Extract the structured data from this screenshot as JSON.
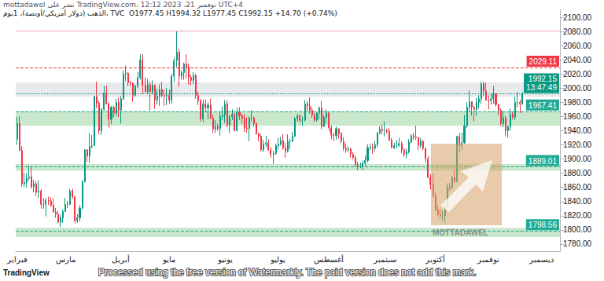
{
  "chart_data": {
    "type": "candlestick",
    "title": "الذهب (دولار أمريكي/أونصة)، 1يوم، TVC  O1977.45 H1994.32 L1977.45 C1992.15 +14.70 (+0.74%)",
    "subtitle": "mottadawel نشر على TradingView.com، نوفمبر 21، 2023 12:12 UTC+4",
    "categories": [
      "فبراير",
      null,
      null,
      null,
      null,
      null,
      null,
      null,
      null,
      null,
      null,
      null,
      null,
      null,
      null,
      null,
      null,
      null,
      null,
      null,
      "مارس",
      null,
      null,
      null,
      null,
      null,
      null,
      null,
      null,
      null,
      null,
      null,
      null,
      null,
      null,
      null,
      null,
      null,
      null,
      null,
      null,
      null,
      null,
      "أبريل",
      null,
      null,
      null,
      null,
      null,
      null,
      null,
      null,
      null,
      null,
      null,
      null,
      null,
      null,
      null,
      null,
      null,
      null,
      null,
      "مايو",
      null,
      null,
      null,
      null,
      null,
      null,
      null,
      null,
      null,
      null,
      null,
      null,
      null,
      null,
      null,
      null,
      null,
      null,
      null,
      null,
      null,
      null,
      "يونيو",
      null,
      null,
      null,
      null,
      null,
      null,
      null,
      null,
      null,
      null,
      null,
      null,
      null,
      null,
      null,
      null,
      null,
      null,
      null,
      null,
      null,
      "يوليو",
      null,
      null,
      null,
      null,
      null,
      null,
      null,
      null,
      null,
      null,
      null,
      null,
      null,
      null,
      null,
      null,
      null,
      null,
      null,
      null,
      "أغسطس",
      null,
      null,
      null,
      null,
      null,
      null,
      null,
      null,
      null,
      null,
      null,
      null,
      null,
      null,
      null,
      null,
      null,
      null,
      null,
      null,
      null,
      null,
      "سبتمبر",
      null,
      null,
      null,
      null,
      null,
      null,
      null,
      null,
      null,
      null,
      null,
      null,
      null,
      null,
      null,
      null,
      null,
      null,
      null,
      null,
      "أكتوبر",
      null,
      null,
      null,
      null,
      null,
      null,
      null,
      null,
      null,
      null,
      null,
      null,
      null,
      null,
      null,
      null,
      null,
      null,
      null,
      null,
      null,
      "نوفمبر",
      null,
      null,
      null,
      null,
      null,
      null,
      null,
      null,
      null,
      null,
      null,
      null,
      null,
      null,
      null,
      null,
      null,
      null,
      null,
      null,
      null,
      "ديسمبر",
      null,
      null,
      null,
      null,
      null,
      null,
      null
    ],
    "open": [
      1928,
      1950,
      1912,
      1865,
      1867,
      1873,
      1875,
      1861,
      1865,
      1853,
      1855,
      1836,
      1836,
      1842,
      1841,
      1835,
      1825,
      1822,
      1811,
      1817,
      1826,
      1836,
      1836,
      1855,
      1847,
      1813,
      1817,
      1831,
      1868,
      1913,
      1904,
      1918,
      1919,
      1988,
      1979,
      1940,
      1970,
      1993,
      1978,
      1956,
      1973,
      1965,
      1980,
      1969,
      1985,
      2020,
      2021,
      2008,
      2007,
      1990,
      2003,
      2015,
      2040,
      2004,
      1995,
      2005,
      1995,
      2004,
      1983,
      1989,
      1998,
      1990,
      1989,
      1990,
      1983,
      2017,
      2039,
      2051,
      2017,
      2022,
      2034,
      2030,
      2015,
      2011,
      2018,
      1990,
      1982,
      1957,
      1978,
      1972,
      1976,
      1958,
      1942,
      1946,
      1943,
      1960,
      1962,
      1978,
      1948,
      1960,
      1963,
      1940,
      1966,
      1961,
      1957,
      1944,
      1943,
      1958,
      1958,
      1950,
      1936,
      1932,
      1913,
      1921,
      1923,
      1913,
      1907,
      1908,
      1919,
      1921,
      1926,
      1916,
      1911,
      1925,
      1925,
      1932,
      1957,
      1961,
      1955,
      1955,
      1978,
      1975,
      1969,
      1962,
      1955,
      1965,
      1972,
      1946,
      1959,
      1965,
      1944,
      1934,
      1933,
      1943,
      1936,
      1925,
      1915,
      1913,
      1914,
      1907,
      1902,
      1892,
      1889,
      1889,
      1894,
      1898,
      1916,
      1917,
      1915,
      1920,
      1937,
      1942,
      1940,
      1940,
      1939,
      1927,
      1916,
      1919,
      1919,
      1922,
      1913,
      1907,
      1910,
      1924,
      1933,
      1931,
      1930,
      1919,
      1925,
      1915,
      1900,
      1874,
      1864,
      1848,
      1828,
      1822,
      1820,
      1820,
      1832,
      1861,
      1860,
      1874,
      1868,
      1932,
      1919,
      1923,
      1947,
      1973,
      1981,
      1973,
      1970,
      1980,
      1985,
      2006,
      1996,
      1983,
      1982,
      1985,
      1992,
      1977,
      1969,
      1950,
      1958,
      1940,
      1946,
      1963,
      1959,
      1980,
      1980,
      1977.45,
      null,
      null,
      null,
      null,
      null,
      null,
      null,
      null,
      null,
      null,
      null,
      null,
      null,
      null,
      null
    ],
    "high": [
      1959,
      1960,
      1918,
      1881,
      1880,
      1891,
      1890,
      1870,
      1869,
      1870,
      1858,
      1845,
      1845,
      1847,
      1846,
      1845,
      1831,
      1827,
      1822,
      1829,
      1845,
      1841,
      1858,
      1858,
      1848,
      1822,
      1835,
      1870,
      1914,
      1914,
      1937,
      1934,
      1989,
      2009,
      1982,
      1972,
      2003,
      2004,
      1980,
      1975,
      1975,
      1985,
      1987,
      1989,
      2025,
      2032,
      2023,
      2010,
      2008,
      2005,
      2023,
      2048,
      2048,
      2015,
      2013,
      2009,
      2011,
      2005,
      1999,
      2005,
      2009,
      1998,
      2000,
      1998,
      2020,
      2043,
      2081,
      2056,
      2025,
      2036,
      2048,
      2035,
      2019,
      2023,
      2020,
      1995,
      1985,
      1984,
      1984,
      1980,
      1985,
      1962,
      1955,
      1950,
      1966,
      1974,
      1983,
      1983,
      1962,
      1970,
      1965,
      1972,
      1973,
      1964,
      1963,
      1959,
      1960,
      1969,
      1960,
      1952,
      1937,
      1935,
      1927,
      1933,
      1928,
      1917,
      1911,
      1922,
      1930,
      1931,
      1935,
      1923,
      1935,
      1929,
      1938,
      1959,
      1964,
      1963,
      1960,
      1983,
      1982,
      1987,
      1973,
      1965,
      1966,
      1974,
      1982,
      1962,
      1970,
      1966,
      1947,
      1937,
      1946,
      1943,
      1938,
      1931,
      1922,
      1918,
      1916,
      1910,
      1905,
      1896,
      1895,
      1898,
      1905,
      1921,
      1922,
      1922,
      1925,
      1938,
      1946,
      1949,
      1953,
      1943,
      1944,
      1930,
      1923,
      1927,
      1930,
      1925,
      1915,
      1915,
      1928,
      1935,
      1937,
      1947,
      1931,
      1930,
      1927,
      1916,
      1904,
      1879,
      1880,
      1853,
      1835,
      1830,
      1827,
      1835,
      1866,
      1866,
      1876,
      1884,
      1933,
      1937,
      1937,
      1962,
      1980,
      1997,
      1981,
      1975,
      1986,
      1990,
      2009,
      2009,
      2008,
      1990,
      1993,
      2003,
      1993,
      1978,
      1971,
      1966,
      1961,
      1947,
      1971,
      1966,
      1988,
      1994,
      1984,
      1994.32,
      null,
      null,
      null,
      null,
      null,
      null,
      null,
      null,
      null,
      null,
      null,
      null,
      null,
      null,
      null
    ],
    "low": [
      1920,
      1911,
      1861,
      1860,
      1860,
      1870,
      1858,
      1853,
      1848,
      1845,
      1830,
      1830,
      1819,
      1835,
      1832,
      1825,
      1817,
      1809,
      1804,
      1810,
      1826,
      1831,
      1835,
      1844,
      1809,
      1810,
      1812,
      1829,
      1867,
      1896,
      1895,
      1915,
      1919,
      1972,
      1935,
      1934,
      1968,
      1977,
      1944,
      1949,
      1959,
      1961,
      1959,
      1950,
      1983,
      2010,
      2003,
      2003,
      1981,
      1988,
      2000,
      2012,
      1992,
      1994,
      1992,
      1969,
      1991,
      1971,
      1977,
      1975,
      1987,
      1975,
      1976,
      1978,
      1978,
      2009,
      2030,
      2002,
      2012,
      2012,
      2014,
      2005,
      2004,
      2006,
      1985,
      1976,
      1953,
      1952,
      1967,
      1956,
      1956,
      1937,
      1937,
      1940,
      1933,
      1955,
      1951,
      1945,
      1937,
      1955,
      1940,
      1939,
      1955,
      1950,
      1938,
      1937,
      1925,
      1953,
      1946,
      1934,
      1925,
      1911,
      1910,
      1917,
      1912,
      1902,
      1893,
      1906,
      1913,
      1919,
      1913,
      1902,
      1909,
      1914,
      1924,
      1931,
      1953,
      1951,
      1947,
      1953,
      1967,
      1964,
      1958,
      1952,
      1953,
      1956,
      1942,
      1945,
      1950,
      1939,
      1928,
      1925,
      1927,
      1929,
      1922,
      1912,
      1909,
      1910,
      1902,
      1900,
      1890,
      1885,
      1887,
      1884,
      1890,
      1895,
      1912,
      1907,
      1911,
      1917,
      1935,
      1935,
      1932,
      1936,
      1925,
      1915,
      1914,
      1915,
      1917,
      1908,
      1903,
      1901,
      1908,
      1922,
      1927,
      1927,
      1913,
      1915,
      1912,
      1895,
      1873,
      1857,
      1846,
      1828,
      1820,
      1816,
      1813,
      1810,
      1831,
      1855,
      1857,
      1866,
      1867,
      1909,
      1913,
      1921,
      1944,
      1967,
      1961,
      1953,
      1961,
      1971,
      1978,
      1989,
      1982,
      1970,
      1977,
      1978,
      1974,
      1962,
      1947,
      1945,
      1932,
      1930,
      1940,
      1956,
      1955,
      1973,
      1965,
      1977.45,
      null,
      null,
      null,
      null,
      null,
      null,
      null,
      null,
      null,
      null,
      null,
      null,
      null,
      null,
      null
    ],
    "close": [
      1950,
      1912,
      1865,
      1867,
      1873,
      1875,
      1861,
      1865,
      1853,
      1855,
      1836,
      1836,
      1842,
      1841,
      1835,
      1825,
      1822,
      1811,
      1817,
      1826,
      1836,
      1836,
      1855,
      1847,
      1813,
      1817,
      1831,
      1868,
      1913,
      1904,
      1918,
      1919,
      1988,
      1979,
      1940,
      1970,
      1993,
      1978,
      1956,
      1973,
      1965,
      1980,
      1969,
      1985,
      2020,
      2021,
      2008,
      2007,
      1990,
      2003,
      2015,
      2040,
      2004,
      1995,
      2005,
      1995,
      2004,
      1983,
      1989,
      1998,
      1990,
      1989,
      1990,
      1983,
      2017,
      2039,
      2051,
      2017,
      2022,
      2034,
      2030,
      2015,
      2011,
      2018,
      1990,
      1982,
      1957,
      1978,
      1972,
      1976,
      1958,
      1942,
      1946,
      1943,
      1960,
      1962,
      1978,
      1948,
      1960,
      1963,
      1940,
      1966,
      1961,
      1957,
      1944,
      1943,
      1958,
      1958,
      1950,
      1936,
      1932,
      1913,
      1921,
      1923,
      1913,
      1907,
      1908,
      1919,
      1921,
      1926,
      1916,
      1911,
      1925,
      1925,
      1932,
      1957,
      1961,
      1955,
      1955,
      1978,
      1975,
      1969,
      1962,
      1955,
      1965,
      1972,
      1946,
      1959,
      1965,
      1944,
      1934,
      1933,
      1943,
      1936,
      1925,
      1915,
      1913,
      1914,
      1907,
      1902,
      1892,
      1889,
      1889,
      1894,
      1898,
      1916,
      1917,
      1915,
      1920,
      1937,
      1942,
      1940,
      1940,
      1939,
      1927,
      1916,
      1919,
      1919,
      1922,
      1913,
      1907,
      1910,
      1924,
      1933,
      1931,
      1930,
      1919,
      1925,
      1915,
      1900,
      1874,
      1864,
      1848,
      1828,
      1822,
      1820,
      1820,
      1832,
      1861,
      1860,
      1874,
      1868,
      1932,
      1919,
      1923,
      1947,
      1973,
      1981,
      1973,
      1970,
      1980,
      1985,
      2006,
      1996,
      1983,
      1982,
      1985,
      1992,
      1977,
      1969,
      1950,
      1958,
      1940,
      1946,
      1963,
      1959,
      1980,
      1980,
      1977.45,
      1992.15,
      null,
      null,
      null,
      null,
      null,
      null,
      null,
      null,
      null,
      null,
      null,
      null,
      null,
      null,
      null
    ],
    "ylim": [
      1770,
      2110
    ],
    "yticks": [
      {
        "value": 1780,
        "label": "1780.00"
      },
      {
        "value": 1800,
        "label": "1800.00"
      },
      {
        "value": 1820,
        "label": "1820.00"
      },
      {
        "value": 1840,
        "label": "1840.00"
      },
      {
        "value": 1860,
        "label": "1860.00"
      },
      {
        "value": 1880,
        "label": "1880.00"
      },
      {
        "value": 1900,
        "label": "1900.00"
      },
      {
        "value": 1920,
        "label": "1920.00"
      },
      {
        "value": 1940,
        "label": "1940.00"
      },
      {
        "value": 1960,
        "label": "1960.00"
      },
      {
        "value": 1980,
        "label": "1980.00"
      },
      {
        "value": 2000,
        "label": "2000.00"
      },
      {
        "value": 2020,
        "label": "2020.00"
      },
      {
        "value": 2040,
        "label": "2040.00"
      },
      {
        "value": 2060,
        "label": "2060.00"
      },
      {
        "value": 2080,
        "label": "2080.00"
      },
      {
        "value": 2100,
        "label": "2100.00"
      }
    ],
    "grid": false,
    "zones": [
      {
        "from": 1988,
        "to": 2008,
        "color": "#b2b5be"
      },
      {
        "from": 1947,
        "to": 1967.41,
        "color": "#4caf50"
      },
      {
        "from": 1883.5,
        "to": 1893,
        "color": "#4caf50"
      },
      {
        "from": 1790,
        "to": 1803,
        "color": "#4caf50"
      }
    ],
    "levels": [
      {
        "value": 2081,
        "color": "#f4a3a9",
        "line_style": "solid"
      },
      {
        "value": 2029.11,
        "label": "2029.11",
        "color": "#f23645",
        "line_style": "dashed"
      },
      {
        "value": 1967.41,
        "label": "1967.41",
        "color": "#22ab94",
        "line_style": "dashed"
      },
      {
        "value": 1889.01,
        "label": "1889.01",
        "color": "#22ab94",
        "line_style": "dashed"
      },
      {
        "value": 1798.56,
        "label": "1798.56",
        "color": "#22ab94",
        "line_style": "dashed"
      }
    ],
    "last_price": {
      "value": 1992.15,
      "label": "1992.15",
      "countdown": "13:47:49",
      "color": "#089981",
      "line_style": "dotted"
    },
    "annotations": {
      "logo": "MOTTADAWEL",
      "watermark": "Processed using the free version of Watermarkly. The paid version does not add this mark.",
      "source": "TradingView"
    }
  }
}
